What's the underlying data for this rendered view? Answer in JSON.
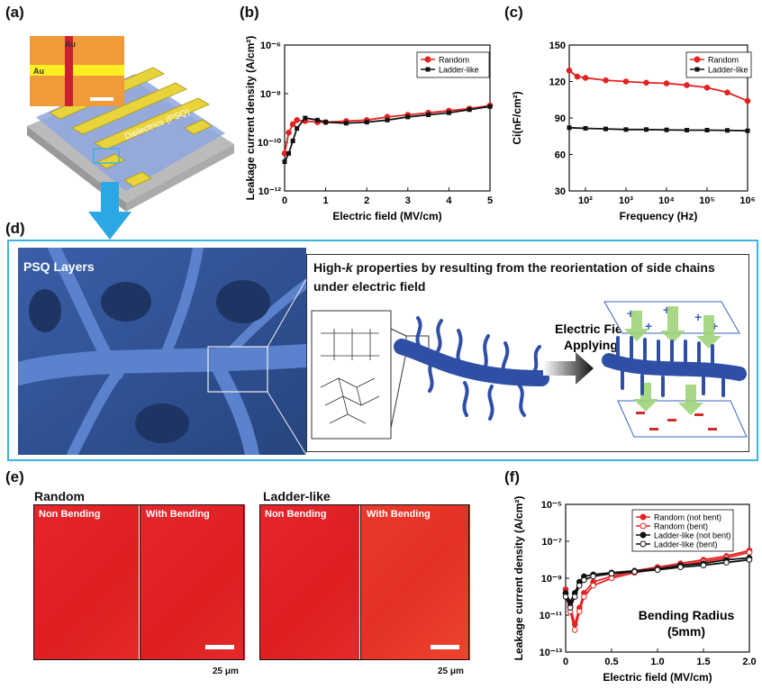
{
  "panel_labels": {
    "a": "(a)",
    "b": "(b)",
    "c": "(c)",
    "d": "(d)",
    "e": "(e)",
    "f": "(f)"
  },
  "panel_a": {
    "au_label_1": "Au",
    "au_label_2": "Au",
    "dielectric_label": "Dielectrics (PSQ)"
  },
  "panel_d": {
    "psq_layers": "PSQ Layers",
    "title_line1_pre": "High-",
    "title_line1_k": "k",
    "title_line1_post": " properties by resulting from the  reorientation of side chains",
    "title_line2": "under electric field",
    "arrow_label_1": "Electric Field",
    "arrow_label_2": "Applying"
  },
  "panel_e": {
    "random": "Random",
    "ladder": "Ladder-like",
    "non_bending": "Non Bending",
    "with_bending": "With Bending",
    "scale_1": "25 μm",
    "scale_2": "25 μm"
  },
  "panel_f_extra": {
    "annotation_1": "Bending Radius",
    "annotation_2": "(5mm)"
  },
  "colors": {
    "random": "#e32222",
    "ladder": "#111111",
    "frame": "#3bb3e0"
  },
  "chart_data": [
    {
      "id": "b",
      "type": "line",
      "xlabel": "Electric field (MV/cm)",
      "ylabel": "Leakage current density (A/cm²)",
      "xlim": [
        0,
        5
      ],
      "yscale": "log",
      "ylim": [
        -12,
        -5
      ],
      "xticks": [
        "0",
        "1",
        "2",
        "3",
        "4",
        "5"
      ],
      "yticks": [
        "10⁻¹²",
        "10⁻¹⁰",
        "10⁻⁸",
        "10⁻⁶"
      ],
      "legend_position": "top-right",
      "series": [
        {
          "name": "Random",
          "x": [
            0,
            0.1,
            0.2,
            0.3,
            0.5,
            0.8,
            1,
            1.5,
            2,
            2.5,
            3,
            3.5,
            4,
            4.5,
            5
          ],
          "y": [
            -10.2,
            -9.2,
            -8.8,
            -8.6,
            -8.65,
            -8.7,
            -8.7,
            -8.65,
            -8.6,
            -8.45,
            -8.35,
            -8.25,
            -8.15,
            -8.05,
            -7.9
          ]
        },
        {
          "name": "Ladder-like",
          "x": [
            0,
            0.1,
            0.2,
            0.3,
            0.5,
            0.8,
            1,
            1.5,
            2,
            2.5,
            3,
            3.5,
            4,
            4.5,
            5
          ],
          "y": [
            -10.6,
            -10.2,
            -9.6,
            -9,
            -8.5,
            -8.6,
            -8.7,
            -8.75,
            -8.7,
            -8.6,
            -8.45,
            -8.35,
            -8.25,
            -8.1,
            -7.95
          ]
        }
      ]
    },
    {
      "id": "c",
      "type": "line",
      "xlabel": "Frequency (Hz)",
      "ylabel": "Ci(nF/cm²)",
      "xscale": "log",
      "xlim": [
        1.6,
        6
      ],
      "ylim": [
        30,
        150
      ],
      "xticks": [
        "10²",
        "10³",
        "10⁴",
        "10⁵",
        "10⁶"
      ],
      "yticks": [
        "30",
        "60",
        "90",
        "120",
        "150"
      ],
      "legend_position": "top-right",
      "series": [
        {
          "name": "Random",
          "x": [
            1.6,
            1.8,
            2,
            2.5,
            3,
            3.5,
            4,
            4.5,
            5,
            5.5,
            6
          ],
          "y": [
            129,
            124,
            123,
            121,
            120,
            119,
            118.5,
            117,
            115,
            111,
            104
          ]
        },
        {
          "name": "Ladder-like",
          "x": [
            1.6,
            2,
            2.5,
            3,
            3.5,
            4,
            4.5,
            5,
            5.5,
            6
          ],
          "y": [
            82,
            81.5,
            81,
            80.5,
            80.5,
            80.2,
            80,
            80,
            79.8,
            79.5
          ]
        }
      ]
    },
    {
      "id": "f",
      "type": "line",
      "xlabel": "Electric field (MV/cm)",
      "ylabel": "Leakage current density (A/cm²)",
      "xlim": [
        0,
        2
      ],
      "yscale": "log",
      "ylim": [
        -13,
        -5
      ],
      "xticks": [
        "0",
        "0.5",
        "1.0",
        "1.5",
        "2.0"
      ],
      "yticks": [
        "10⁻¹³",
        "10⁻¹¹",
        "10⁻⁹",
        "10⁻⁷",
        "10⁻⁵"
      ],
      "legend_position": "top-right",
      "series": [
        {
          "name": "Random (not bent)",
          "x": [
            0,
            0.05,
            0.1,
            0.15,
            0.2,
            0.3,
            0.5,
            0.75,
            1,
            1.25,
            1.5,
            1.75,
            2
          ],
          "y": [
            -9.6,
            -10.5,
            -11.5,
            -10.6,
            -9.8,
            -9.2,
            -8.9,
            -8.6,
            -8.4,
            -8.2,
            -8.0,
            -7.8,
            -7.5
          ]
        },
        {
          "name": "Random (bent)",
          "x": [
            0,
            0.05,
            0.1,
            0.15,
            0.2,
            0.3,
            0.5,
            0.75,
            1,
            1.25,
            1.5,
            1.75,
            2
          ],
          "y": [
            -9.8,
            -10.8,
            -11.8,
            -10.8,
            -10.0,
            -9.4,
            -9.0,
            -8.7,
            -8.5,
            -8.3,
            -8.1,
            -7.9,
            -7.6
          ]
        },
        {
          "name": "Ladder-like (not bent)",
          "x": [
            0,
            0.05,
            0.1,
            0.15,
            0.2,
            0.3,
            0.5,
            0.75,
            1,
            1.25,
            1.5,
            1.75,
            2
          ],
          "y": [
            -9.8,
            -10.3,
            -9.8,
            -9.2,
            -8.9,
            -8.8,
            -8.7,
            -8.6,
            -8.5,
            -8.3,
            -8.2,
            -8.0,
            -7.9
          ]
        },
        {
          "name": "Ladder-like (bent)",
          "x": [
            0,
            0.05,
            0.1,
            0.15,
            0.2,
            0.3,
            0.5,
            0.75,
            1,
            1.25,
            1.5,
            1.75,
            2
          ],
          "y": [
            -10.0,
            -10.6,
            -10.0,
            -9.4,
            -9.1,
            -8.9,
            -8.75,
            -8.65,
            -8.55,
            -8.4,
            -8.3,
            -8.15,
            -8.0
          ]
        }
      ]
    }
  ]
}
